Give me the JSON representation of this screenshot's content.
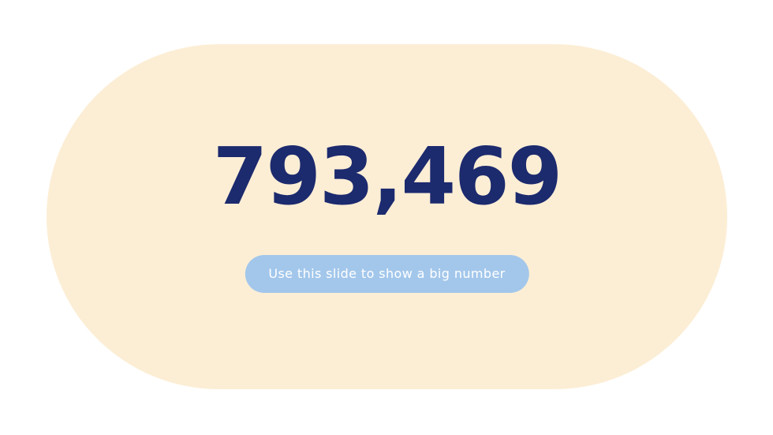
{
  "slide": {
    "big_number": "793,469",
    "caption": "Use this slide to show a big number"
  },
  "colors": {
    "background": "#FFFFFF",
    "card": "#FCEED5",
    "number": "#1C2A6E",
    "caption_pill": "#A3C7EB",
    "caption_text": "#FFFFFF"
  }
}
